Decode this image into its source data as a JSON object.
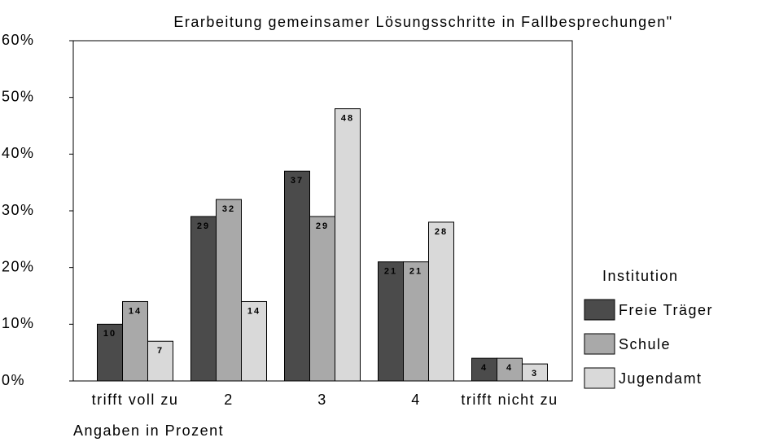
{
  "chart_data": {
    "type": "bar",
    "title": "Erarbeitung gemeinsamer Lösungsschritte in Fallbesprechungen\"",
    "x_label": "Angaben in Prozent",
    "legend_title": "Institution",
    "legend_position": "right",
    "categories": [
      "trifft voll zu",
      "2",
      "3",
      "4",
      "trifft nicht zu"
    ],
    "series": [
      {
        "name": "Freie Träger",
        "color": "#4b4b4b",
        "values": [
          10,
          29,
          37,
          21,
          4
        ]
      },
      {
        "name": "Schule",
        "color": "#a9a9a9",
        "values": [
          14,
          32,
          29,
          21,
          4
        ]
      },
      {
        "name": "Jugendamt",
        "color": "#d9d9d9",
        "values": [
          7,
          14,
          48,
          28,
          3
        ]
      }
    ],
    "ylim": [
      0,
      60
    ],
    "yticks": [
      {
        "value": 0,
        "label": "0%"
      },
      {
        "value": 10,
        "label": "10%"
      },
      {
        "value": 20,
        "label": "20%"
      },
      {
        "value": 30,
        "label": "30%"
      },
      {
        "value": 40,
        "label": "40%"
      },
      {
        "value": 50,
        "label": "50%"
      },
      {
        "value": 60,
        "label": "60%"
      }
    ],
    "grid": false
  }
}
